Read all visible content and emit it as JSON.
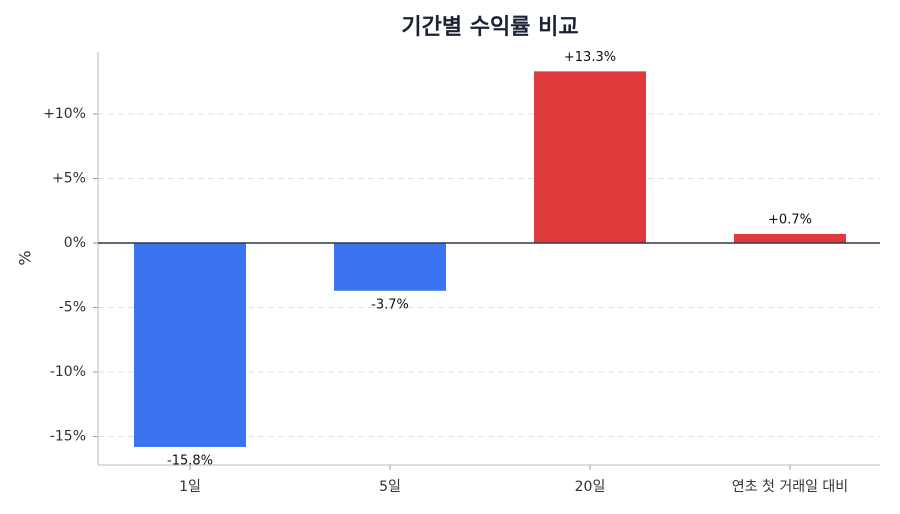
{
  "chart_data": {
    "type": "bar",
    "title": "기간별 수익률 비교",
    "y_label": "%",
    "categories": [
      "1일",
      "5일",
      "20일",
      "연초 첫 거래일 대비"
    ],
    "values": [
      -15.8,
      -3.7,
      13.3,
      0.7
    ],
    "value_labels": [
      "-15.8%",
      "-3.7%",
      "+13.3%",
      "+0.7%"
    ],
    "positive_color": "#e03a3c",
    "negative_color": "#3b74f0",
    "ylim": [
      -17.2,
      14.8
    ],
    "yticks": [
      {
        "value": -15,
        "label": "-15%"
      },
      {
        "value": -10,
        "label": "-10%"
      },
      {
        "value": -5,
        "label": "-5%"
      },
      {
        "value": 0,
        "label": "0%"
      },
      {
        "value": 5,
        "label": "+5%"
      },
      {
        "value": 10,
        "label": "+10%"
      }
    ],
    "grid": true
  }
}
